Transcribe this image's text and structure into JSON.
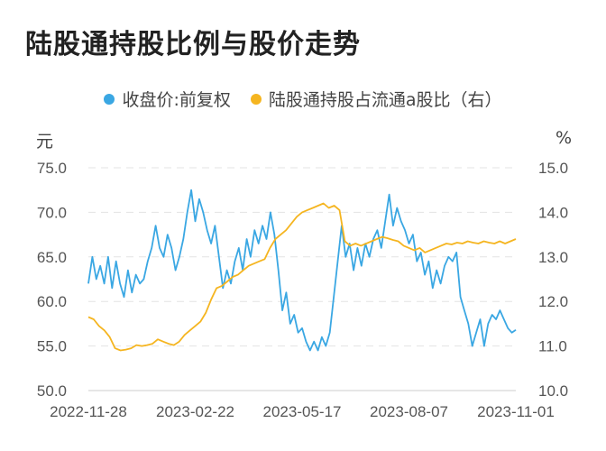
{
  "title": "陆股通持股比例与股价走势",
  "legend": [
    {
      "label": "收盘价:前复权",
      "color": "#3aa7e3"
    },
    {
      "label": "陆股通持股占流通a股比（右）",
      "color": "#f5b520"
    }
  ],
  "left_unit": "元",
  "right_unit": "%",
  "chart_data": {
    "type": "line",
    "title": "陆股通持股比例与股价走势",
    "x_ticks": [
      "2022-11-28",
      "2023-02-22",
      "2023-05-17",
      "2023-08-07",
      "2023-11-01"
    ],
    "y_left": {
      "label": "元",
      "ticks": [
        "75.0",
        "70.0",
        "65.0",
        "60.0",
        "55.0",
        "50.0"
      ],
      "ylim": [
        50,
        75
      ]
    },
    "y_right": {
      "label": "%",
      "ticks": [
        "15.0",
        "14.0",
        "13.0",
        "12.0",
        "11.0",
        "10.0"
      ],
      "ylim": [
        10,
        15
      ]
    },
    "grid": true,
    "series": [
      {
        "name": "收盘价:前复权",
        "axis": "left",
        "color": "#3aa7e3",
        "values": [
          62.0,
          65.0,
          62.5,
          64.0,
          62.0,
          65.0,
          61.5,
          64.5,
          62.0,
          60.5,
          63.5,
          61.0,
          63.0,
          62.0,
          62.5,
          64.5,
          66.0,
          68.5,
          66.0,
          65.0,
          67.5,
          66.0,
          63.5,
          65.0,
          67.0,
          70.0,
          72.5,
          69.0,
          71.5,
          70.0,
          68.0,
          66.5,
          68.5,
          65.0,
          61.5,
          63.5,
          62.0,
          64.5,
          66.0,
          63.5,
          67.0,
          65.0,
          68.0,
          66.5,
          68.5,
          67.0,
          70.0,
          67.5,
          63.5,
          59.0,
          61.0,
          57.5,
          58.5,
          56.5,
          57.0,
          55.5,
          54.5,
          55.5,
          54.5,
          56.0,
          55.0,
          56.5,
          60.5,
          64.5,
          68.5,
          65.0,
          66.5,
          63.5,
          66.0,
          64.0,
          66.5,
          65.0,
          67.0,
          68.0,
          66.0,
          69.0,
          72.0,
          68.5,
          70.5,
          69.0,
          68.0,
          66.5,
          67.5,
          64.5,
          65.5,
          63.0,
          64.5,
          61.5,
          63.5,
          62.0,
          64.0,
          65.0,
          64.5,
          65.5,
          60.5,
          59.0,
          57.5,
          55.0,
          56.5,
          58.0,
          55.0,
          57.5,
          58.5,
          58.0,
          59.0,
          58.0,
          57.0,
          56.5,
          56.8
        ]
      },
      {
        "name": "陆股通持股占流通a股比（右）",
        "axis": "right",
        "color": "#f5b520",
        "values": [
          11.65,
          11.6,
          11.45,
          11.35,
          11.2,
          10.95,
          10.9,
          10.92,
          10.95,
          11.02,
          11.0,
          11.02,
          11.05,
          11.15,
          11.1,
          11.05,
          11.02,
          11.1,
          11.25,
          11.35,
          11.45,
          11.55,
          11.75,
          12.05,
          12.3,
          12.35,
          12.45,
          12.55,
          12.6,
          12.7,
          12.8,
          12.85,
          12.9,
          12.95,
          13.2,
          13.4,
          13.5,
          13.6,
          13.75,
          13.9,
          14.0,
          14.05,
          14.1,
          14.15,
          14.2,
          14.1,
          14.15,
          14.05,
          13.35,
          13.25,
          13.3,
          13.25,
          13.3,
          13.35,
          13.4,
          13.45,
          13.42,
          13.38,
          13.35,
          13.25,
          13.2,
          13.15,
          13.2,
          13.1,
          13.15,
          13.2,
          13.25,
          13.3,
          13.28,
          13.32,
          13.3,
          13.35,
          13.32,
          13.3,
          13.35,
          13.32,
          13.3,
          13.35,
          13.3,
          13.35,
          13.4
        ]
      }
    ]
  }
}
